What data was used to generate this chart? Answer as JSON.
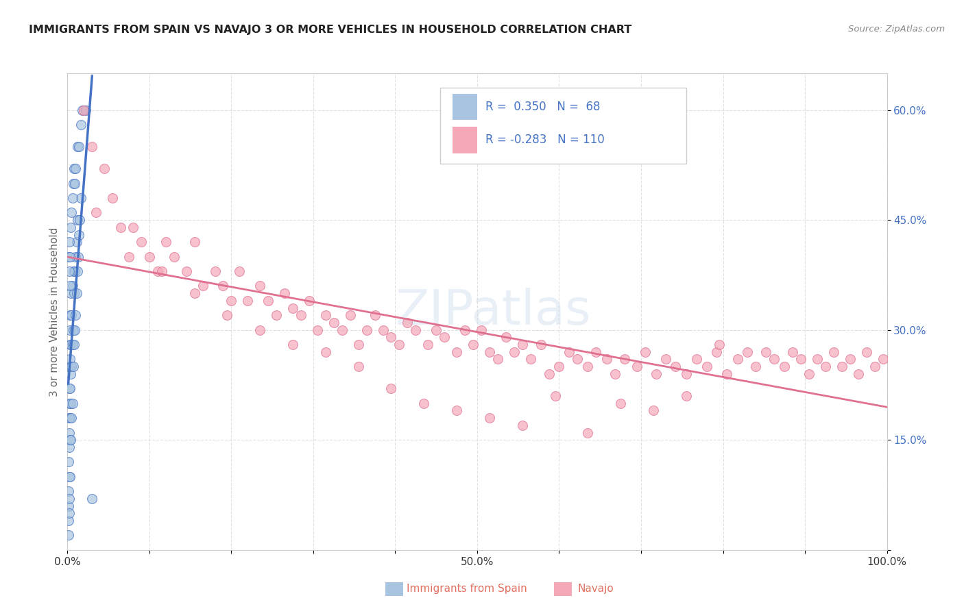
{
  "title": "IMMIGRANTS FROM SPAIN VS NAVAJO 3 OR MORE VEHICLES IN HOUSEHOLD CORRELATION CHART",
  "source": "Source: ZipAtlas.com",
  "ylabel": "3 or more Vehicles in Household",
  "xlim": [
    0.0,
    1.0
  ],
  "ylim": [
    0.0,
    0.65
  ],
  "color_blue": "#a8c4e0",
  "color_pink": "#f4a8b8",
  "color_blue_dark": "#4472c4",
  "color_pink_dark": "#e07090",
  "dashed_line_color": "#b8c8d8",
  "watermark": "ZIPatlas",
  "legend_text_color": "#4472c4",
  "bottom_legend_color": "#e07060",
  "spain_x": [
    0.001,
    0.001,
    0.001,
    0.001,
    0.001,
    0.002,
    0.002,
    0.002,
    0.002,
    0.002,
    0.002,
    0.002,
    0.002,
    0.002,
    0.003,
    0.003,
    0.003,
    0.003,
    0.003,
    0.003,
    0.003,
    0.003,
    0.004,
    0.004,
    0.004,
    0.004,
    0.004,
    0.005,
    0.005,
    0.005,
    0.006,
    0.006,
    0.006,
    0.007,
    0.007,
    0.007,
    0.008,
    0.008,
    0.009,
    0.009,
    0.01,
    0.01,
    0.011,
    0.011,
    0.012,
    0.012,
    0.013,
    0.014,
    0.015,
    0.016,
    0.001,
    0.002,
    0.002,
    0.003,
    0.003,
    0.004,
    0.005,
    0.006,
    0.007,
    0.008,
    0.009,
    0.01,
    0.012,
    0.014,
    0.016,
    0.018,
    0.022,
    0.03
  ],
  "spain_y": [
    0.02,
    0.04,
    0.06,
    0.08,
    0.12,
    0.05,
    0.07,
    0.1,
    0.14,
    0.16,
    0.18,
    0.2,
    0.22,
    0.25,
    0.1,
    0.15,
    0.18,
    0.22,
    0.26,
    0.28,
    0.3,
    0.32,
    0.15,
    0.2,
    0.24,
    0.28,
    0.35,
    0.18,
    0.25,
    0.32,
    0.2,
    0.28,
    0.36,
    0.25,
    0.3,
    0.38,
    0.28,
    0.35,
    0.3,
    0.38,
    0.32,
    0.4,
    0.35,
    0.42,
    0.38,
    0.45,
    0.4,
    0.43,
    0.45,
    0.48,
    0.4,
    0.38,
    0.42,
    0.36,
    0.4,
    0.44,
    0.46,
    0.48,
    0.5,
    0.52,
    0.5,
    0.52,
    0.55,
    0.55,
    0.58,
    0.6,
    0.6,
    0.07
  ],
  "navajo_x": [
    0.02,
    0.03,
    0.045,
    0.055,
    0.065,
    0.08,
    0.09,
    0.1,
    0.11,
    0.12,
    0.13,
    0.145,
    0.155,
    0.165,
    0.18,
    0.19,
    0.2,
    0.21,
    0.22,
    0.235,
    0.245,
    0.255,
    0.265,
    0.275,
    0.285,
    0.295,
    0.305,
    0.315,
    0.325,
    0.335,
    0.345,
    0.355,
    0.365,
    0.375,
    0.385,
    0.395,
    0.405,
    0.415,
    0.425,
    0.44,
    0.45,
    0.46,
    0.475,
    0.485,
    0.495,
    0.505,
    0.515,
    0.525,
    0.535,
    0.545,
    0.555,
    0.565,
    0.578,
    0.588,
    0.6,
    0.612,
    0.622,
    0.635,
    0.645,
    0.658,
    0.668,
    0.68,
    0.695,
    0.705,
    0.718,
    0.73,
    0.742,
    0.755,
    0.768,
    0.78,
    0.792,
    0.805,
    0.818,
    0.83,
    0.84,
    0.852,
    0.862,
    0.875,
    0.885,
    0.895,
    0.905,
    0.915,
    0.925,
    0.935,
    0.945,
    0.955,
    0.965,
    0.975,
    0.985,
    0.995,
    0.035,
    0.075,
    0.115,
    0.155,
    0.195,
    0.235,
    0.275,
    0.315,
    0.355,
    0.395,
    0.435,
    0.475,
    0.515,
    0.555,
    0.595,
    0.635,
    0.675,
    0.715,
    0.755,
    0.795
  ],
  "navajo_y": [
    0.6,
    0.55,
    0.52,
    0.48,
    0.44,
    0.44,
    0.42,
    0.4,
    0.38,
    0.42,
    0.4,
    0.38,
    0.42,
    0.36,
    0.38,
    0.36,
    0.34,
    0.38,
    0.34,
    0.36,
    0.34,
    0.32,
    0.35,
    0.33,
    0.32,
    0.34,
    0.3,
    0.32,
    0.31,
    0.3,
    0.32,
    0.28,
    0.3,
    0.32,
    0.3,
    0.29,
    0.28,
    0.31,
    0.3,
    0.28,
    0.3,
    0.29,
    0.27,
    0.3,
    0.28,
    0.3,
    0.27,
    0.26,
    0.29,
    0.27,
    0.28,
    0.26,
    0.28,
    0.24,
    0.25,
    0.27,
    0.26,
    0.25,
    0.27,
    0.26,
    0.24,
    0.26,
    0.25,
    0.27,
    0.24,
    0.26,
    0.25,
    0.24,
    0.26,
    0.25,
    0.27,
    0.24,
    0.26,
    0.27,
    0.25,
    0.27,
    0.26,
    0.25,
    0.27,
    0.26,
    0.24,
    0.26,
    0.25,
    0.27,
    0.25,
    0.26,
    0.24,
    0.27,
    0.25,
    0.26,
    0.46,
    0.4,
    0.38,
    0.35,
    0.32,
    0.3,
    0.28,
    0.27,
    0.25,
    0.22,
    0.2,
    0.19,
    0.18,
    0.17,
    0.21,
    0.16,
    0.2,
    0.19,
    0.21,
    0.28
  ]
}
